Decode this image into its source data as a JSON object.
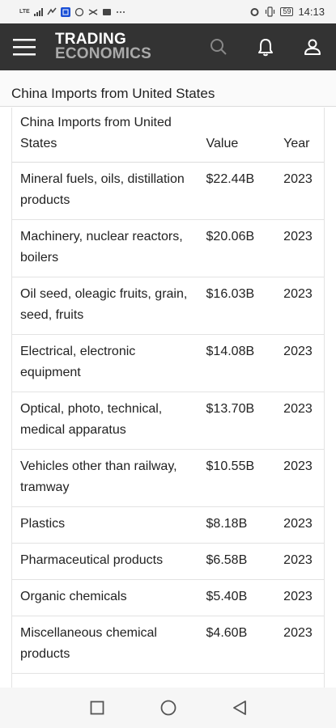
{
  "status_bar": {
    "network": "LTE",
    "battery": "59",
    "time": "14:13",
    "icons": [
      "lte-signal-icon",
      "signal-bars-icon",
      "notification-icon",
      "app-badge-icon",
      "circle-icon",
      "shortcut-icon",
      "mail-icon",
      "more-icon",
      "alarm-icon",
      "vibrate-icon",
      "battery-icon"
    ]
  },
  "app_bar": {
    "brand_line1": "TRADING",
    "brand_line2": "ECONOMICS",
    "icons": [
      "menu-icon",
      "search-icon",
      "bell-icon",
      "user-icon"
    ]
  },
  "page": {
    "title": "China Imports from United States"
  },
  "table": {
    "headers": {
      "name": "China Imports from United States",
      "value": "Value",
      "year": "Year"
    },
    "rows": [
      {
        "name": "Mineral fuels, oils, distillation products",
        "value": "$22.44B",
        "year": "2023"
      },
      {
        "name": "Machinery, nuclear reactors, boilers",
        "value": "$20.06B",
        "year": "2023"
      },
      {
        "name": "Oil seed, oleagic fruits, grain, seed, fruits",
        "value": "$16.03B",
        "year": "2023"
      },
      {
        "name": "Electrical, electronic equipment",
        "value": "$14.08B",
        "year": "2023"
      },
      {
        "name": "Optical, photo, technical, medical apparatus",
        "value": "$13.70B",
        "year": "2023"
      },
      {
        "name": "Vehicles other than railway, tramway",
        "value": "$10.55B",
        "year": "2023"
      },
      {
        "name": "Plastics",
        "value": "$8.18B",
        "year": "2023"
      },
      {
        "name": "Pharmaceutical products",
        "value": "$6.58B",
        "year": "2023"
      },
      {
        "name": "Organic chemicals",
        "value": "$5.40B",
        "year": "2023"
      },
      {
        "name": "Miscellaneous chemical products",
        "value": "$4.60B",
        "year": "2023"
      }
    ]
  },
  "nav_bar": {
    "icons": [
      "recents-square-icon",
      "home-circle-icon",
      "back-triangle-icon"
    ]
  },
  "colors": {
    "app_bar_bg": "#333333",
    "brand_primary": "#ffffff",
    "brand_secondary": "#aaaaaa",
    "border": "#e3e3e3"
  }
}
